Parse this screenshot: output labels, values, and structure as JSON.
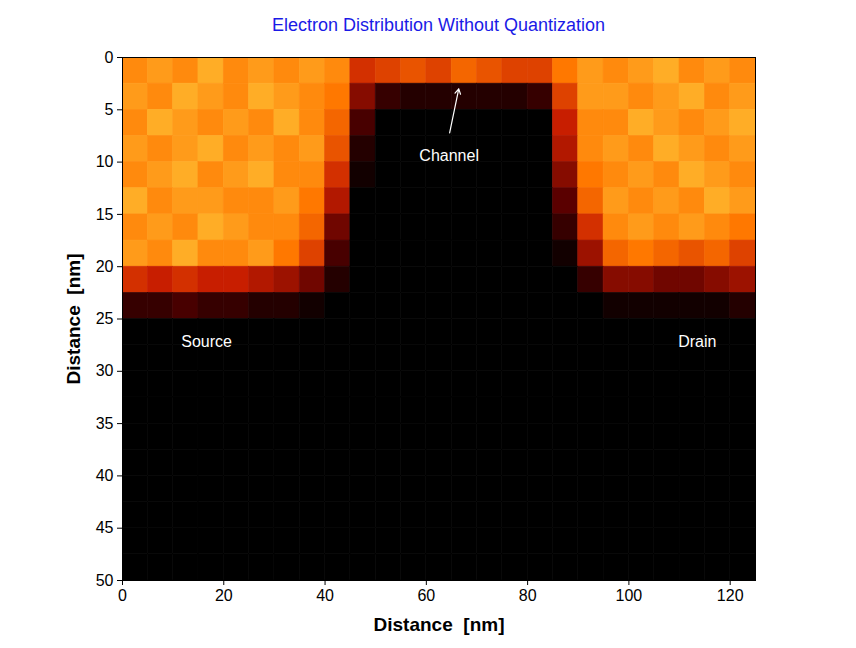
{
  "chart_data": {
    "type": "heatmap",
    "title": "Electron Distribution Without Quantization",
    "x_label": "Distance  [nm]",
    "y_label": "Distance  [nm]",
    "xlim": [
      0,
      125
    ],
    "ylim": [
      50,
      0
    ],
    "xticks": [
      0,
      20,
      40,
      60,
      80,
      100,
      120
    ],
    "yticks": [
      0,
      5,
      10,
      15,
      20,
      25,
      30,
      35,
      40,
      45,
      50
    ],
    "x_bins": [
      0,
      5,
      10,
      15,
      20,
      25,
      30,
      35,
      40,
      45,
      50,
      55,
      60,
      65,
      70,
      75,
      80,
      85,
      90,
      95,
      100,
      105,
      110,
      115,
      120,
      125
    ],
    "y_bins": [
      0,
      2.5,
      5,
      7.5,
      10,
      12.5,
      15,
      17.5,
      20,
      22.5,
      25,
      27.5,
      30,
      32.5,
      35,
      37.5,
      40,
      42.5,
      45,
      47.5,
      50
    ],
    "zlim": [
      0,
      1
    ],
    "color": [
      "#000000",
      "#5a0000",
      "#c81e00",
      "#ff7800",
      "#ffd040"
    ],
    "cells": [
      [
        0.8,
        0.85,
        0.8,
        0.9,
        0.8,
        0.85,
        0.8,
        0.85,
        0.8,
        0.55,
        0.6,
        0.65,
        0.6,
        0.7,
        0.65,
        0.6,
        0.6,
        0.75,
        0.85,
        0.8,
        0.85,
        0.9,
        0.8,
        0.85,
        0.8
      ],
      [
        0.85,
        0.8,
        0.9,
        0.85,
        0.8,
        0.9,
        0.85,
        0.8,
        0.75,
        0.35,
        0.15,
        0.1,
        0.1,
        0.1,
        0.1,
        0.1,
        0.15,
        0.6,
        0.85,
        0.85,
        0.8,
        0.85,
        0.9,
        0.8,
        0.85
      ],
      [
        0.8,
        0.9,
        0.85,
        0.8,
        0.85,
        0.8,
        0.9,
        0.8,
        0.7,
        0.2,
        0,
        0,
        0,
        0,
        0,
        0,
        0,
        0.5,
        0.8,
        0.8,
        0.9,
        0.85,
        0.8,
        0.85,
        0.9
      ],
      [
        0.85,
        0.8,
        0.85,
        0.9,
        0.8,
        0.85,
        0.8,
        0.85,
        0.65,
        0.1,
        0,
        0,
        0,
        0,
        0,
        0,
        0,
        0.45,
        0.8,
        0.85,
        0.8,
        0.9,
        0.85,
        0.8,
        0.85
      ],
      [
        0.8,
        0.85,
        0.9,
        0.8,
        0.85,
        0.9,
        0.8,
        0.8,
        0.55,
        0.05,
        0,
        0,
        0,
        0,
        0,
        0,
        0,
        0.35,
        0.75,
        0.8,
        0.85,
        0.8,
        0.9,
        0.85,
        0.8
      ],
      [
        0.9,
        0.8,
        0.85,
        0.85,
        0.8,
        0.8,
        0.85,
        0.75,
        0.45,
        0,
        0,
        0,
        0,
        0,
        0,
        0,
        0,
        0.25,
        0.7,
        0.85,
        0.8,
        0.85,
        0.8,
        0.9,
        0.85
      ],
      [
        0.8,
        0.85,
        0.8,
        0.9,
        0.85,
        0.8,
        0.8,
        0.7,
        0.3,
        0,
        0,
        0,
        0,
        0,
        0,
        0,
        0,
        0.15,
        0.55,
        0.8,
        0.85,
        0.8,
        0.85,
        0.8,
        0.75
      ],
      [
        0.85,
        0.8,
        0.9,
        0.8,
        0.8,
        0.85,
        0.75,
        0.6,
        0.2,
        0,
        0,
        0,
        0,
        0,
        0,
        0,
        0,
        0.05,
        0.4,
        0.7,
        0.75,
        0.7,
        0.65,
        0.7,
        0.6
      ],
      [
        0.55,
        0.5,
        0.55,
        0.5,
        0.5,
        0.45,
        0.4,
        0.3,
        0.1,
        0,
        0,
        0,
        0,
        0,
        0,
        0,
        0,
        0,
        0.15,
        0.35,
        0.35,
        0.3,
        0.3,
        0.35,
        0.4
      ],
      [
        0.15,
        0.15,
        0.2,
        0.15,
        0.15,
        0.1,
        0.1,
        0.05,
        0,
        0,
        0,
        0,
        0,
        0,
        0,
        0,
        0,
        0,
        0,
        0.05,
        0.05,
        0.05,
        0.05,
        0.05,
        0.1
      ],
      [
        0,
        0,
        0,
        0,
        0,
        0,
        0,
        0,
        0,
        0,
        0,
        0,
        0,
        0,
        0,
        0,
        0,
        0,
        0,
        0,
        0,
        0,
        0,
        0,
        0
      ],
      [
        0,
        0,
        0,
        0,
        0,
        0,
        0,
        0,
        0,
        0,
        0,
        0,
        0,
        0,
        0,
        0,
        0,
        0,
        0,
        0,
        0,
        0,
        0,
        0,
        0
      ],
      [
        0,
        0,
        0,
        0,
        0,
        0,
        0,
        0,
        0,
        0,
        0,
        0,
        0,
        0,
        0,
        0,
        0,
        0,
        0,
        0,
        0,
        0,
        0,
        0,
        0
      ],
      [
        0,
        0,
        0,
        0,
        0,
        0,
        0,
        0,
        0,
        0,
        0,
        0,
        0,
        0,
        0,
        0,
        0,
        0,
        0,
        0,
        0,
        0,
        0,
        0,
        0
      ],
      [
        0,
        0,
        0,
        0,
        0,
        0,
        0,
        0,
        0,
        0,
        0,
        0,
        0,
        0,
        0,
        0,
        0,
        0,
        0,
        0,
        0,
        0,
        0,
        0,
        0
      ],
      [
        0,
        0,
        0,
        0,
        0,
        0,
        0,
        0,
        0,
        0,
        0,
        0,
        0,
        0,
        0,
        0,
        0,
        0,
        0,
        0,
        0,
        0,
        0,
        0,
        0
      ],
      [
        0,
        0,
        0,
        0,
        0,
        0,
        0,
        0,
        0,
        0,
        0,
        0,
        0,
        0,
        0,
        0,
        0,
        0,
        0,
        0,
        0,
        0,
        0,
        0,
        0
      ],
      [
        0,
        0,
        0,
        0,
        0,
        0,
        0,
        0,
        0,
        0,
        0,
        0,
        0,
        0,
        0,
        0,
        0,
        0,
        0,
        0,
        0,
        0,
        0,
        0,
        0
      ],
      [
        0,
        0,
        0,
        0,
        0,
        0,
        0,
        0,
        0,
        0,
        0,
        0,
        0,
        0,
        0,
        0,
        0,
        0,
        0,
        0,
        0,
        0,
        0,
        0,
        0
      ],
      [
        0,
        0,
        0,
        0,
        0,
        0,
        0,
        0,
        0,
        0,
        0,
        0,
        0,
        0,
        0,
        0,
        0,
        0,
        0,
        0,
        0,
        0,
        0,
        0,
        0
      ]
    ],
    "annotations": [
      {
        "text": "Channel",
        "x": 64.5,
        "y": 9.4,
        "arrow_from": [
          64.6,
          7.2
        ],
        "arrow_to": [
          66.4,
          3.0
        ]
      },
      {
        "text": "Source",
        "x": 16.6,
        "y": 27.2
      },
      {
        "text": "Drain",
        "x": 113.5,
        "y": 27.2
      }
    ]
  }
}
